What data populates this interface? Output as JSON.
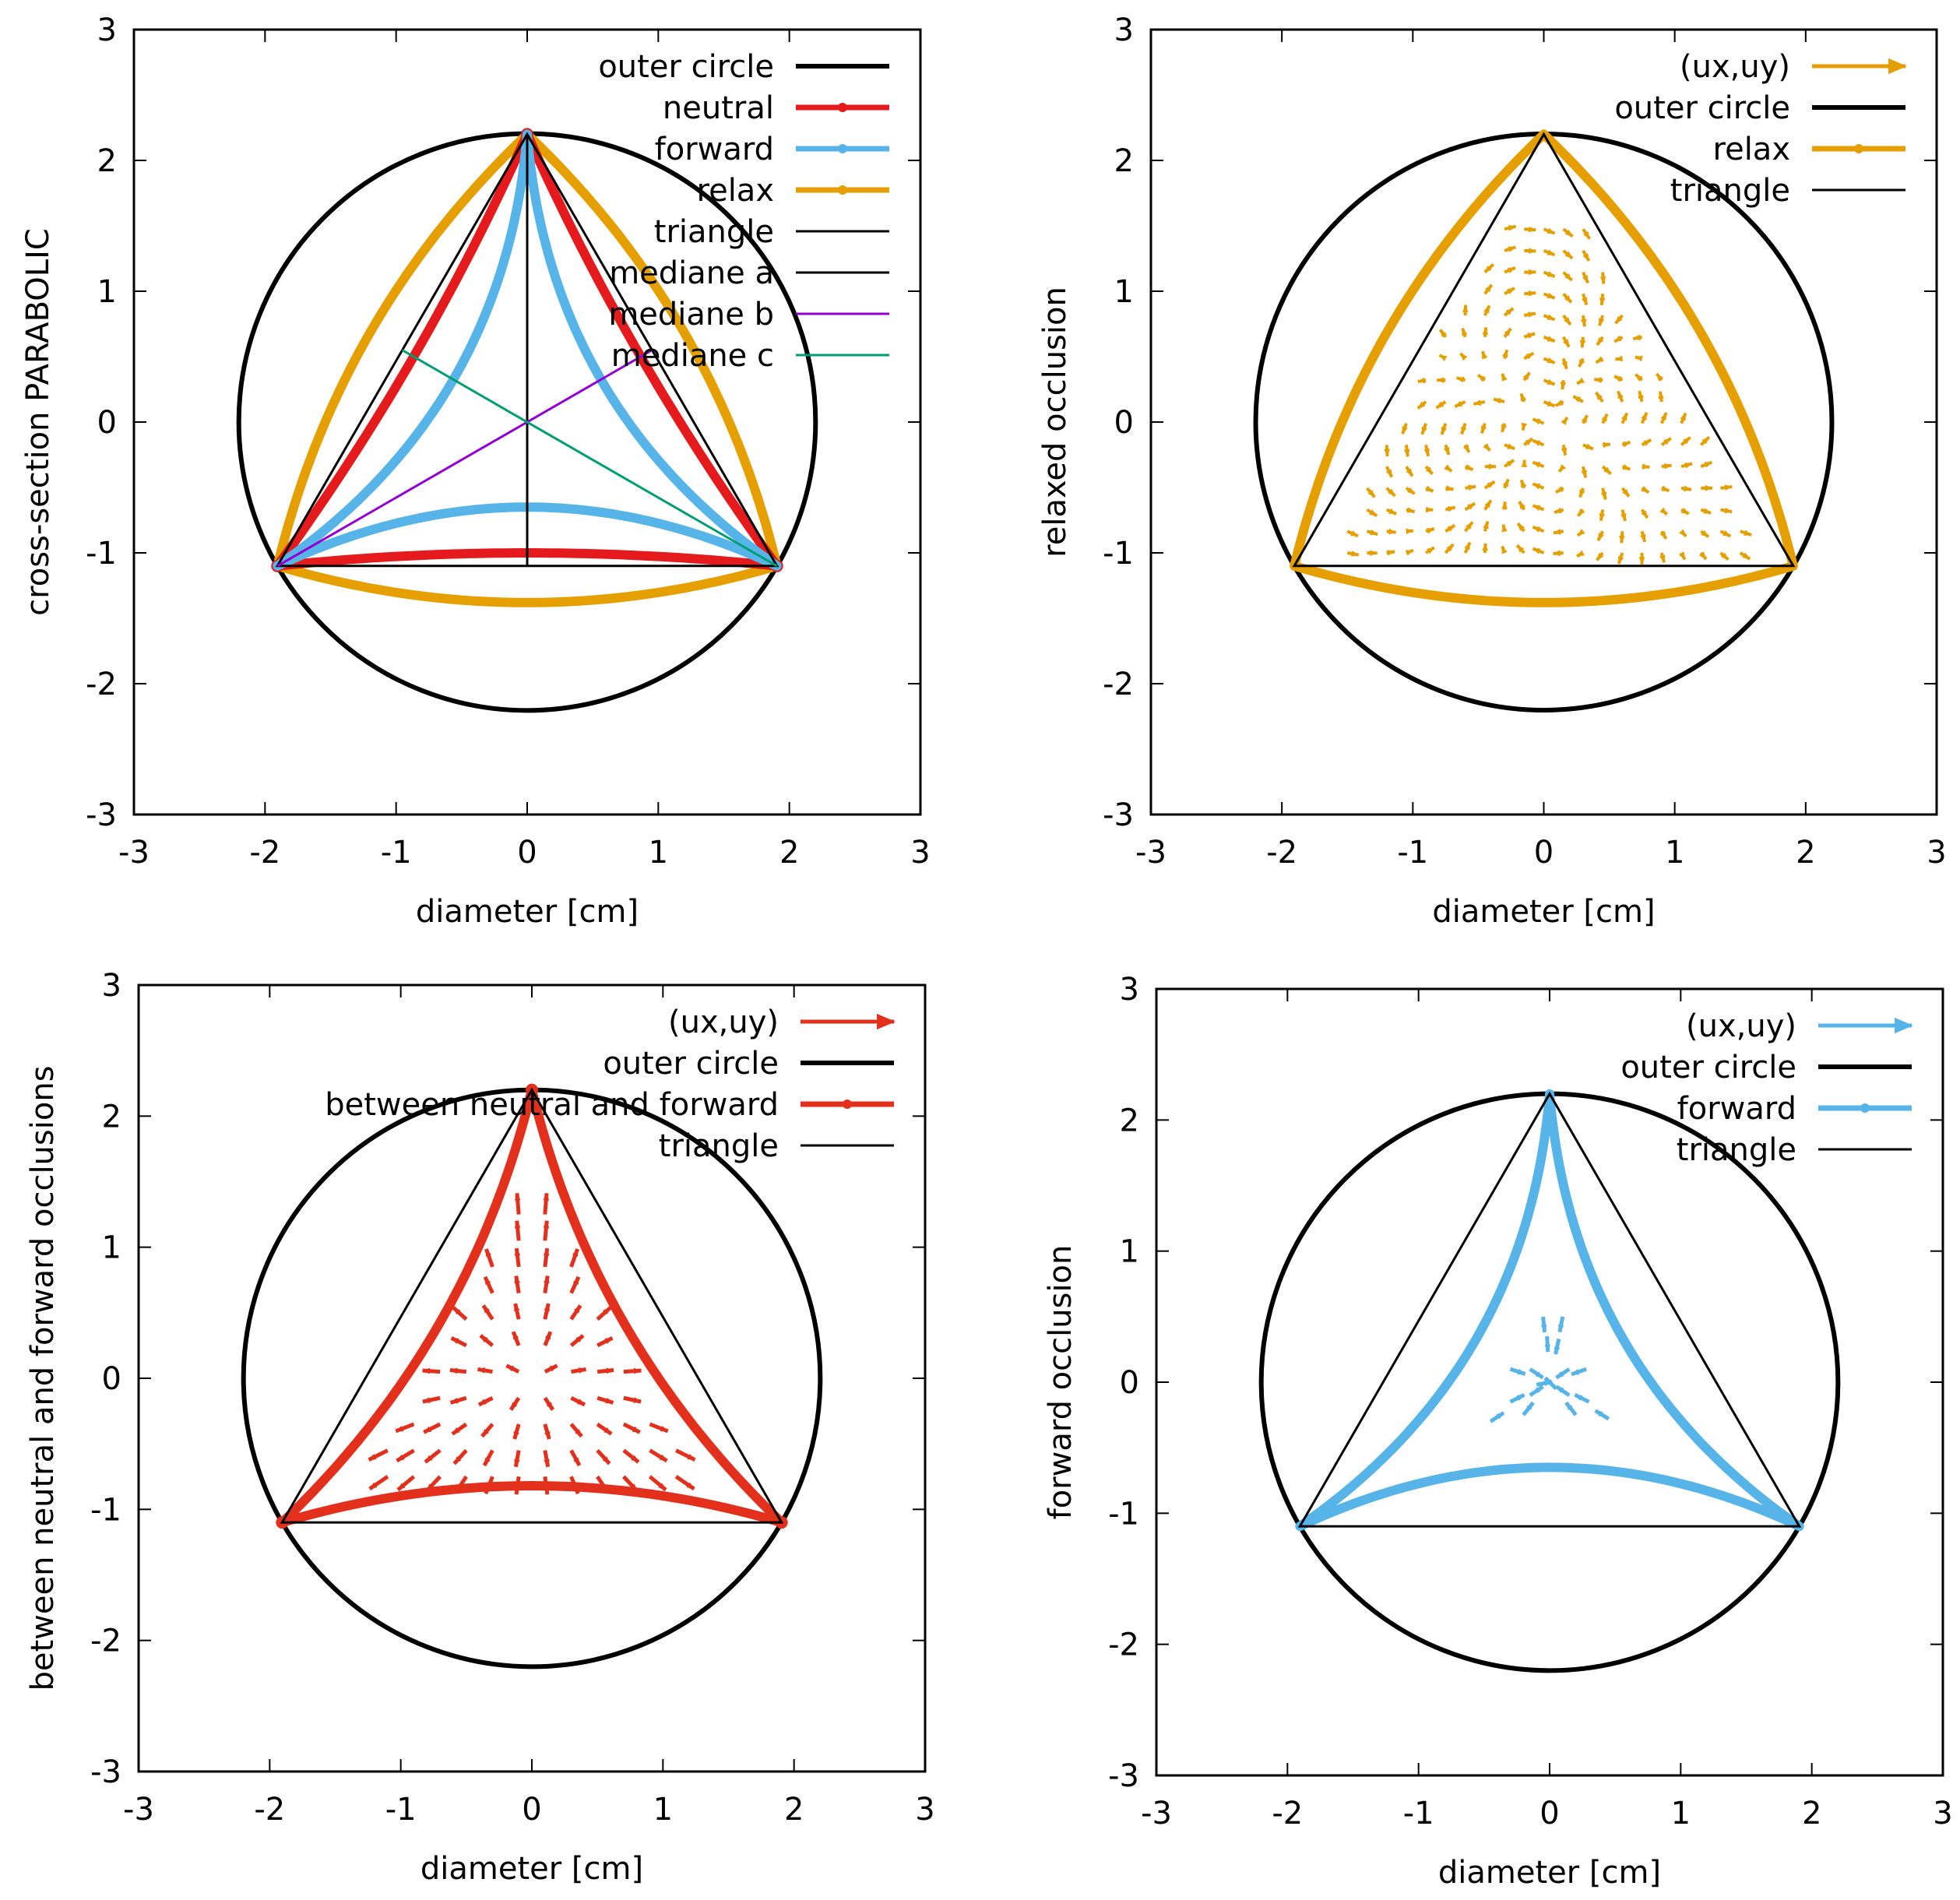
{
  "colors": {
    "circle": "#000000",
    "neutral": "#e41a1c",
    "between": "#e3301c",
    "forward": "#56b4e9",
    "relax": "#e69f00",
    "triangle": "#000000",
    "median_a": "#000000",
    "median_b": "#9400d3",
    "median_c": "#009e73"
  },
  "chart_data": [
    {
      "id": "panel-cross-section",
      "type": "line",
      "xlabel": "diameter [cm]",
      "ylabel": "cross-section PARABOLIC",
      "xlim": [
        -3,
        3
      ],
      "ylim": [
        -3,
        3
      ],
      "xticks": [
        "-3",
        "-2",
        "-1",
        "0",
        "1",
        "2",
        "3"
      ],
      "yticks": [
        "3",
        "2",
        "1",
        "0",
        "-1",
        "-2",
        "-3"
      ],
      "legend_position": "top-right",
      "series": [
        {
          "name": "outer circle",
          "kind": "circle",
          "radius": 2.2,
          "color": "circle",
          "width": 6
        },
        {
          "name": "neutral",
          "kind": "closed-bulge",
          "bulge": -0.1,
          "color": "neutral",
          "width": 12,
          "marker": "dot"
        },
        {
          "name": "forward",
          "kind": "closed-bulge",
          "bulge": -0.45,
          "color": "forward",
          "width": 12,
          "marker": "star"
        },
        {
          "name": "relax",
          "kind": "closed-bulge",
          "bulge": 0.28,
          "color": "relax",
          "width": 12,
          "marker": "square"
        },
        {
          "name": "triangle",
          "kind": "triangle",
          "color": "triangle",
          "width": 3
        },
        {
          "name": "mediane a",
          "kind": "segment",
          "x": [
            0,
            0
          ],
          "y": [
            2.2,
            -1.1
          ],
          "color": "median_a",
          "width": 3
        },
        {
          "name": "mediane b",
          "kind": "segment",
          "x": [
            -1.905,
            0.953
          ],
          "y": [
            -1.1,
            0.55
          ],
          "color": "median_b",
          "width": 3
        },
        {
          "name": "mediane c",
          "kind": "segment",
          "x": [
            1.905,
            -0.953
          ],
          "y": [
            -1.1,
            0.55
          ],
          "color": "median_c",
          "width": 3
        }
      ]
    },
    {
      "id": "panel-relaxed",
      "type": "line",
      "xlabel": "diameter [cm]",
      "ylabel": "relaxed occlusion",
      "xlim": [
        -3,
        3
      ],
      "ylim": [
        -3,
        3
      ],
      "xticks": [
        "-3",
        "-2",
        "-1",
        "0",
        "1",
        "2",
        "3"
      ],
      "yticks": [
        "3",
        "2",
        "1",
        "0",
        "-1",
        "-2",
        "-3"
      ],
      "legend_position": "top-right",
      "series": [
        {
          "name": "(ux,uy)",
          "kind": "vector-field",
          "color": "relax",
          "width": 4,
          "field": "relax",
          "legend_arrow": true
        },
        {
          "name": "outer circle",
          "kind": "circle",
          "radius": 2.2,
          "color": "circle",
          "width": 6
        },
        {
          "name": "relax",
          "kind": "closed-bulge",
          "bulge": 0.28,
          "color": "relax",
          "width": 12,
          "marker": "square"
        },
        {
          "name": "triangle",
          "kind": "triangle",
          "color": "triangle",
          "width": 3
        }
      ]
    },
    {
      "id": "panel-between",
      "type": "line",
      "xlabel": "diameter [cm]",
      "ylabel": "between neutral and forward occlusions",
      "xlim": [
        -3,
        3
      ],
      "ylim": [
        -3,
        3
      ],
      "xticks": [
        "-3",
        "-2",
        "-1",
        "0",
        "1",
        "2",
        "3"
      ],
      "yticks": [
        "3",
        "2",
        "1",
        "0",
        "-1",
        "-2",
        "-3"
      ],
      "legend_position": "top-right",
      "series": [
        {
          "name": "(ux,uy)",
          "kind": "vector-field",
          "color": "between",
          "width": 5,
          "field": "between",
          "legend_arrow": true
        },
        {
          "name": "outer circle",
          "kind": "circle",
          "radius": 2.2,
          "color": "circle",
          "width": 6
        },
        {
          "name": "between neutral and forward",
          "kind": "closed-bulge",
          "bulge": -0.28,
          "color": "between",
          "width": 12,
          "marker": "dot"
        },
        {
          "name": "triangle",
          "kind": "triangle",
          "color": "triangle",
          "width": 3
        }
      ]
    },
    {
      "id": "panel-forward",
      "type": "line",
      "xlabel": "diameter [cm]",
      "ylabel": "forward occlusion",
      "xlim": [
        -3,
        3
      ],
      "ylim": [
        -3,
        3
      ],
      "xticks": [
        "-3",
        "-2",
        "-1",
        "0",
        "1",
        "2",
        "3"
      ],
      "yticks": [
        "3",
        "2",
        "1",
        "0",
        "-1",
        "-2",
        "-3"
      ],
      "legend_position": "top-right",
      "series": [
        {
          "name": "(ux,uy)",
          "kind": "vector-field",
          "color": "forward",
          "width": 5,
          "field": "forward",
          "legend_arrow": true
        },
        {
          "name": "outer circle",
          "kind": "circle",
          "radius": 2.2,
          "color": "circle",
          "width": 6
        },
        {
          "name": "forward",
          "kind": "closed-bulge",
          "bulge": -0.45,
          "color": "forward",
          "width": 12,
          "marker": "star"
        },
        {
          "name": "triangle",
          "kind": "triangle",
          "color": "triangle",
          "width": 3
        }
      ]
    }
  ]
}
